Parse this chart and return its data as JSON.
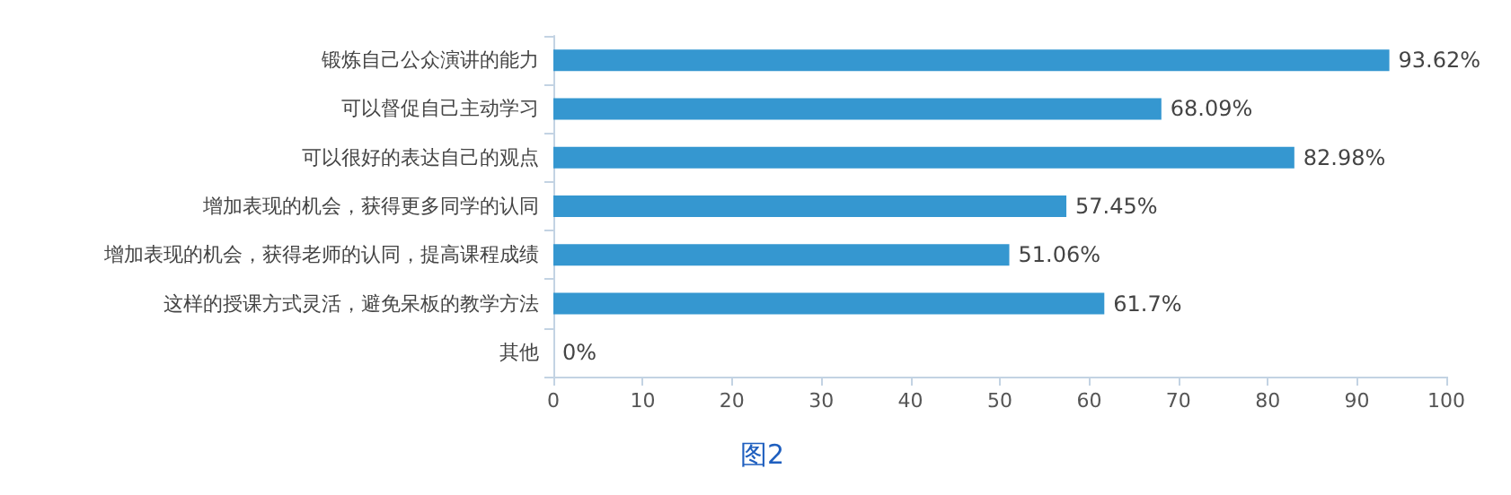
{
  "chart_data": {
    "type": "bar",
    "orientation": "horizontal",
    "categories": [
      "锻炼自己公众演讲的能力",
      "可以督促自己主动学习",
      "可以很好的表达自己的观点",
      "增加表现的机会，获得更多同学的认同",
      "增加表现的机会，获得老师的认同，提高课程成绩",
      "这样的授课方式灵活，避免呆板的教学方法",
      "其他"
    ],
    "values": [
      93.62,
      68.09,
      82.98,
      57.45,
      51.06,
      61.7,
      0
    ],
    "value_labels": [
      "93.62%",
      "68.09%",
      "82.98%",
      "57.45%",
      "51.06%",
      "61.7%",
      "0%"
    ],
    "color": "#3597d0",
    "xlim": [
      0,
      100
    ],
    "xticks": [
      0,
      10,
      20,
      30,
      40,
      50,
      60,
      70,
      80,
      90,
      100
    ],
    "grid": false,
    "annotations": [
      "图2"
    ]
  }
}
